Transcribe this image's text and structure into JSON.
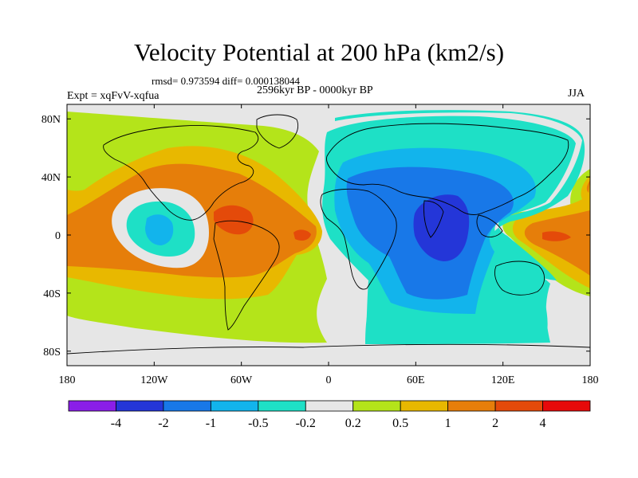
{
  "title": "Velocity Potential at 200 hPa (km2/s)",
  "stats": "rmsd= 0.973594 diff= 0.000138044",
  "period": "2596kyr BP - 0000kyr BP",
  "experiment": "Expt = xqFvV-xqfua",
  "season": "JJA",
  "map": {
    "projection": "cylindrical equidistant",
    "lon_range": [
      -180,
      180
    ],
    "lat_range": [
      -90,
      90
    ],
    "x_tick_labels": [
      "180",
      "120W",
      "60W",
      "0",
      "60E",
      "120E",
      "180"
    ],
    "y_tick_labels": [
      "80N",
      "40N",
      "0",
      "40S",
      "80S"
    ]
  },
  "colorbar": {
    "labels": [
      "-4",
      "-2",
      "-1",
      "-0.5",
      "-0.2",
      "0.2",
      "0.5",
      "1",
      "2",
      "4"
    ],
    "colors": [
      "#8a1ee8",
      "#2436d8",
      "#1878e8",
      "#12b4ec",
      "#1ee0c6",
      "#e6e6e6",
      "#b4e41a",
      "#e8b800",
      "#e67e0a",
      "#e44a0a",
      "#e60a0a"
    ]
  }
}
